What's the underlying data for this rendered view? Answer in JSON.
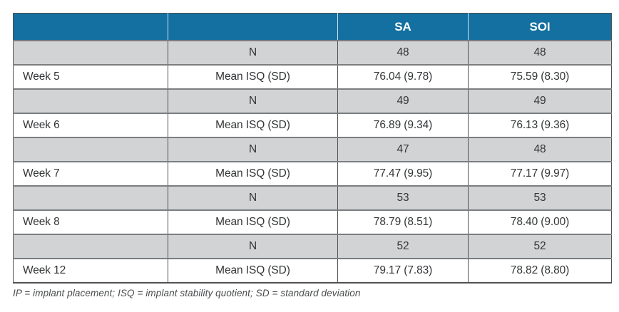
{
  "chart_data": {
    "type": "table",
    "columns": [
      "",
      "",
      "SA",
      "SOI"
    ],
    "rows": [
      {
        "shade": "gray",
        "cells": [
          "",
          "N",
          "48",
          "48"
        ]
      },
      {
        "shade": "white",
        "cells": [
          "Week 5",
          "Mean ISQ (SD)",
          "76.04 (9.78)",
          "75.59 (8.30)"
        ]
      },
      {
        "shade": "gray",
        "cells": [
          "",
          "N",
          "49",
          "49"
        ]
      },
      {
        "shade": "white",
        "cells": [
          "Week 6",
          "Mean ISQ (SD)",
          "76.89 (9.34)",
          "76.13 (9.36)"
        ]
      },
      {
        "shade": "gray",
        "cells": [
          "",
          "N",
          "47",
          "48"
        ]
      },
      {
        "shade": "white",
        "cells": [
          "Week 7",
          "Mean ISQ (SD)",
          "77.47 (9.95)",
          "77.17 (9.97)"
        ]
      },
      {
        "shade": "gray",
        "cells": [
          "",
          "N",
          "53",
          "53"
        ]
      },
      {
        "shade": "white",
        "cells": [
          "Week 8",
          "Mean ISQ (SD)",
          "78.79 (8.51)",
          "78.40 (9.00)"
        ]
      },
      {
        "shade": "gray",
        "cells": [
          "",
          "N",
          "52",
          "52"
        ]
      },
      {
        "shade": "white",
        "cells": [
          "Week 12",
          "Mean ISQ (SD)",
          "79.17 (7.83)",
          "78.82 (8.80)"
        ]
      }
    ]
  },
  "footnote": "IP = implant placement; ISQ = implant stability quotient; SD = standard deviation",
  "colors": {
    "header_bg": "#1470A0",
    "header_text": "#FFFFFF",
    "alt_row_bg": "#D2D3D4",
    "row_bg": "#FFFFFF",
    "horizontal_border": "#7B7D7F",
    "vertical_border": "#4F5153",
    "header_divider": "#CFE2EE",
    "body_text": "#333537"
  }
}
